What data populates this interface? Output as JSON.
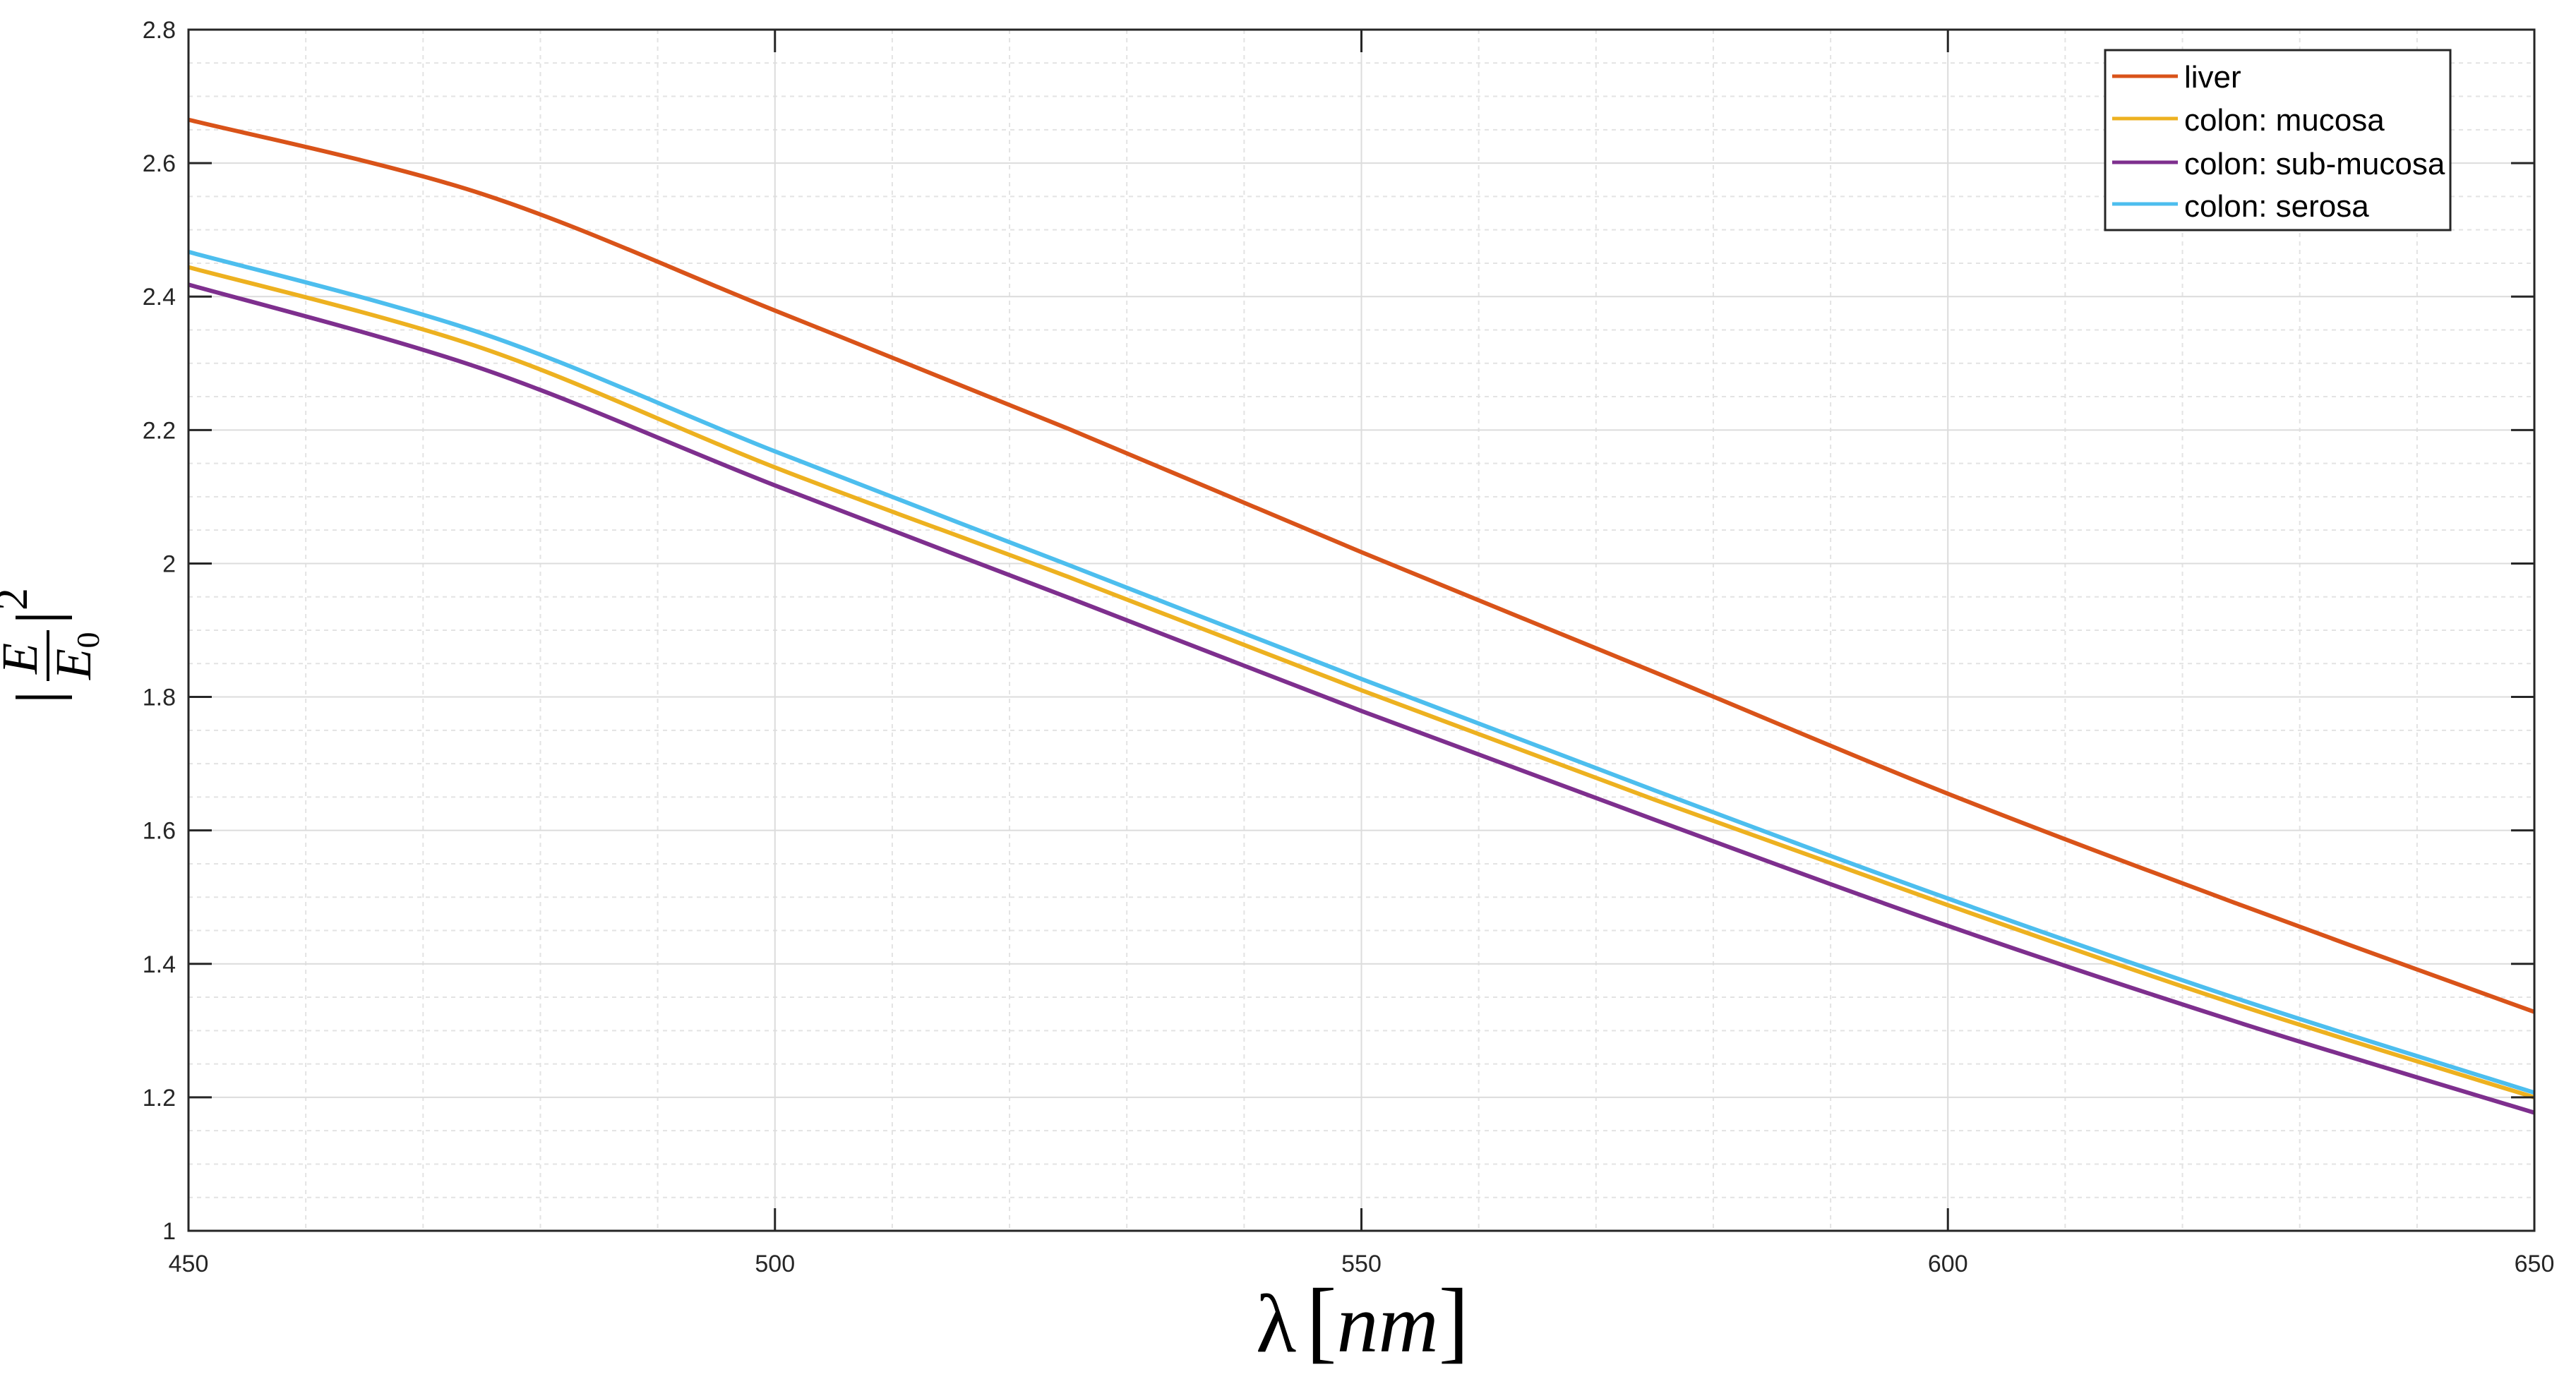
{
  "chart_data": {
    "type": "line",
    "title": "",
    "xlabel": "λ [nm]",
    "ylabel": "|E/E0|^2",
    "xlim": [
      450,
      650
    ],
    "ylim": [
      1,
      2.8
    ],
    "grid": true,
    "minor_grid": true,
    "legend_position": "upper right",
    "x_ticks": [
      450,
      500,
      550,
      600,
      650
    ],
    "y_ticks": [
      1,
      1.2,
      1.4,
      1.6,
      1.8,
      2,
      2.2,
      2.4,
      2.6,
      2.8
    ],
    "x_tick_labels": [
      "450",
      "500",
      "550",
      "600",
      "650"
    ],
    "y_tick_labels": [
      "1",
      "1.2",
      "1.4",
      "1.6",
      "1.8",
      "2",
      "2.2",
      "2.4",
      "2.6",
      "2.8"
    ],
    "x": [
      450,
      475,
      500,
      525,
      550,
      575,
      600,
      625,
      650
    ],
    "series": [
      {
        "name": "liver",
        "color": "#D95319",
        "values": [
          2.665,
          2.554,
          2.379,
          2.202,
          2.017,
          1.837,
          1.655,
          1.488,
          1.328
        ]
      },
      {
        "name": "colon: mucosa",
        "color": "#EDB120",
        "values": [
          2.444,
          2.323,
          2.144,
          1.98,
          1.81,
          1.646,
          1.488,
          1.337,
          1.2
        ]
      },
      {
        "name": "colon: sub-mucosa",
        "color": "#7E2F8E",
        "values": [
          2.418,
          2.292,
          2.117,
          1.949,
          1.779,
          1.616,
          1.457,
          1.311,
          1.177
        ]
      },
      {
        "name": "colon: serosa",
        "color": "#4DBEEE",
        "values": [
          2.467,
          2.345,
          2.168,
          1.998,
          1.827,
          1.66,
          1.498,
          1.346,
          1.207
        ]
      }
    ]
  },
  "axes": {
    "x_label_symbol": "λ",
    "x_label_unit": "nm",
    "y_label_numerator": "E",
    "y_label_denominator": "E",
    "y_label_denominator_sub": "0",
    "y_label_exponent": "2"
  },
  "legend": {
    "items": [
      "liver",
      "colon: mucosa",
      "colon: sub-mucosa",
      "colon: serosa"
    ]
  }
}
